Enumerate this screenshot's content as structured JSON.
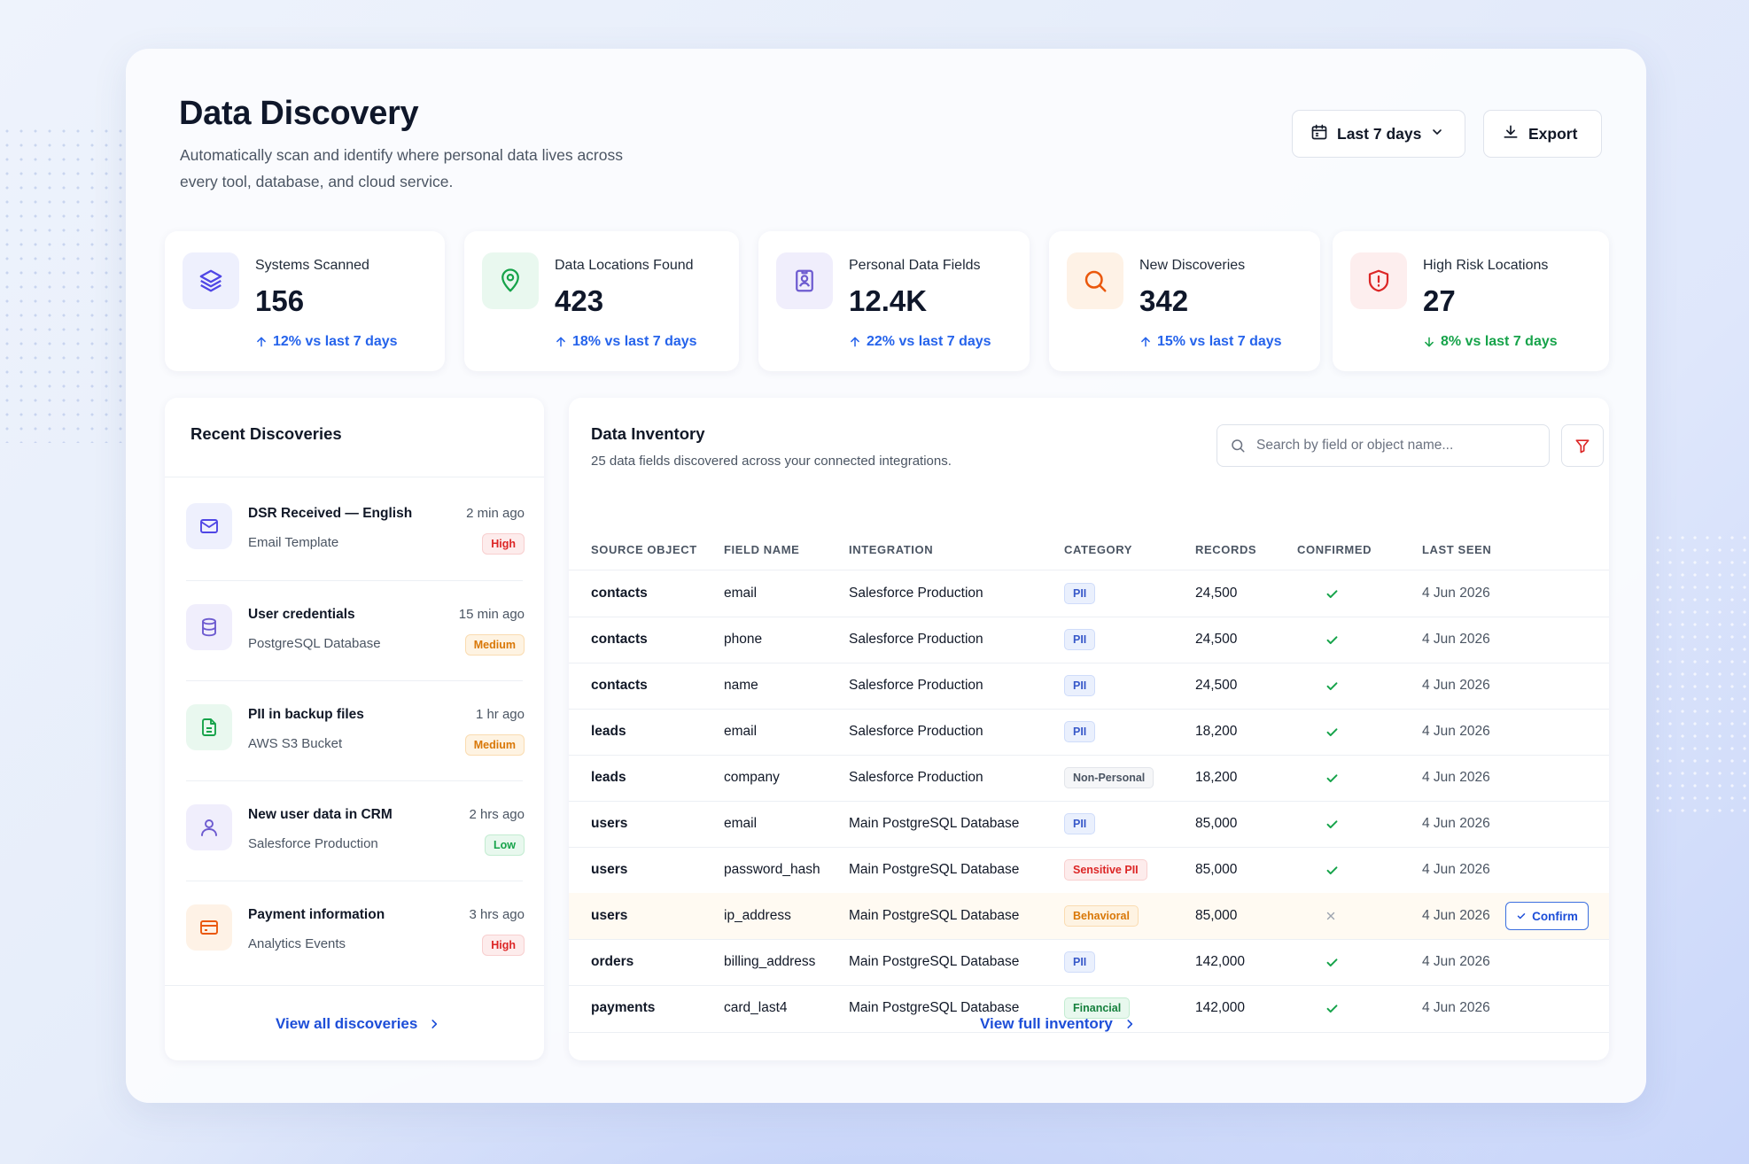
{
  "header": {
    "title": "Data Discovery",
    "subtitle": "Automatically scan and identify where personal data lives across every tool, database, and cloud service.",
    "range_label": "Last 7 days",
    "export_label": "Export"
  },
  "stats": [
    {
      "label": "Systems Scanned",
      "value": "156",
      "trend": "12% vs last 7 days",
      "direction": "up",
      "icon": "layers-icon",
      "color": "#4f46e5"
    },
    {
      "label": "Data Locations Found",
      "value": "423",
      "trend": "18% vs last 7 days",
      "direction": "up",
      "icon": "map-pin-icon",
      "color": "#16a34a"
    },
    {
      "label": "Personal Data Fields",
      "value": "12.4K",
      "trend": "22% vs last 7 days",
      "direction": "up",
      "icon": "id-badge-icon",
      "color": "#6d5bd0"
    },
    {
      "label": "New Discoveries",
      "value": "342",
      "trend": "15% vs last 7 days",
      "direction": "up",
      "icon": "search-icon",
      "color": "#ea580c"
    },
    {
      "label": "High Risk Locations",
      "value": "27",
      "trend": "8% vs last 7 days",
      "direction": "down",
      "icon": "shield-alert-icon",
      "color": "#dc2626"
    }
  ],
  "recent": {
    "title": "Recent Discoveries",
    "items": [
      {
        "title": "DSR Received — English",
        "source": "Email Template",
        "time": "2 min ago",
        "severity": "High",
        "icon": "mail-icon"
      },
      {
        "title": "User credentials",
        "source": "PostgreSQL Database",
        "time": "15 min ago",
        "severity": "Medium",
        "icon": "database-icon"
      },
      {
        "title": "PII in backup files",
        "source": "AWS S3 Bucket",
        "time": "1 hr ago",
        "severity": "Medium",
        "icon": "file-icon"
      },
      {
        "title": "New user data in CRM",
        "source": "Salesforce Production",
        "time": "2 hrs ago",
        "severity": "Low",
        "icon": "user-icon"
      },
      {
        "title": "Payment information",
        "source": "Analytics Events",
        "time": "3 hrs ago",
        "severity": "High",
        "icon": "credit-card-icon"
      }
    ],
    "view_all": "View all discoveries"
  },
  "inventory": {
    "title": "Data Inventory",
    "subtitle": "25 data fields discovered across your connected integrations.",
    "search_placeholder": "Search by field or object name...",
    "columns": [
      "SOURCE OBJECT",
      "FIELD NAME",
      "INTEGRATION",
      "CATEGORY",
      "RECORDS",
      "CONFIRMED",
      "LAST SEEN"
    ],
    "rows": [
      {
        "source": "contacts",
        "field": "email",
        "integration": "Salesforce Production",
        "category": "PII",
        "records": "24,500",
        "confirmed": true,
        "last_seen": "4 Jun 2026"
      },
      {
        "source": "contacts",
        "field": "phone",
        "integration": "Salesforce Production",
        "category": "PII",
        "records": "24,500",
        "confirmed": true,
        "last_seen": "4 Jun 2026"
      },
      {
        "source": "contacts",
        "field": "name",
        "integration": "Salesforce Production",
        "category": "PII",
        "records": "24,500",
        "confirmed": true,
        "last_seen": "4 Jun 2026"
      },
      {
        "source": "leads",
        "field": "email",
        "integration": "Salesforce Production",
        "category": "PII",
        "records": "18,200",
        "confirmed": true,
        "last_seen": "4 Jun 2026"
      },
      {
        "source": "leads",
        "field": "company",
        "integration": "Salesforce Production",
        "category": "Non-Personal",
        "records": "18,200",
        "confirmed": true,
        "last_seen": "4 Jun 2026"
      },
      {
        "source": "users",
        "field": "email",
        "integration": "Main PostgreSQL Database",
        "category": "PII",
        "records": "85,000",
        "confirmed": true,
        "last_seen": "4 Jun 2026"
      },
      {
        "source": "users",
        "field": "password_hash",
        "integration": "Main PostgreSQL Database",
        "category": "Sensitive PII",
        "records": "85,000",
        "confirmed": true,
        "last_seen": "4 Jun 2026"
      },
      {
        "source": "users",
        "field": "ip_address",
        "integration": "Main PostgreSQL Database",
        "category": "Behavioral",
        "records": "85,000",
        "confirmed": false,
        "last_seen": "4 Jun 2026",
        "action": "Confirm"
      },
      {
        "source": "orders",
        "field": "billing_address",
        "integration": "Main PostgreSQL Database",
        "category": "PII",
        "records": "142,000",
        "confirmed": true,
        "last_seen": "4 Jun 2026"
      },
      {
        "source": "payments",
        "field": "card_last4",
        "integration": "Main PostgreSQL Database",
        "category": "Financial",
        "records": "142,000",
        "confirmed": true,
        "last_seen": "4 Jun 2026"
      }
    ],
    "view_full": "View full inventory"
  }
}
